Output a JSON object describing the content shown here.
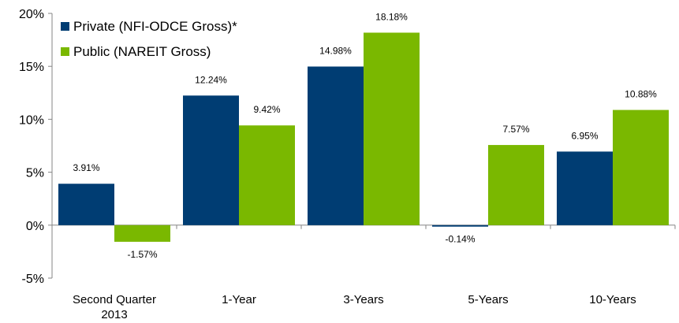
{
  "chart_data": {
    "type": "bar",
    "categories": [
      "Second Quarter 2013",
      "1-Year",
      "3-Years",
      "5-Years",
      "10-Years"
    ],
    "category_lines": [
      [
        "Second Quarter",
        "2013"
      ],
      [
        "1-Year"
      ],
      [
        "3-Years"
      ],
      [
        "5-Years"
      ],
      [
        "10-Years"
      ]
    ],
    "series": [
      {
        "name": "Private (NFI-ODCE Gross)*",
        "color": "#003d73",
        "values": [
          3.91,
          12.24,
          14.98,
          -0.14,
          6.95
        ],
        "labels": [
          "3.91%",
          "12.24%",
          "14.98%",
          "-0.14%",
          "6.95%"
        ]
      },
      {
        "name": "Public (NAREIT Gross)",
        "color": "#7ab800",
        "values": [
          -1.57,
          9.42,
          18.18,
          7.57,
          10.88
        ],
        "labels": [
          "-1.57%",
          "9.42%",
          "18.18%",
          "7.57%",
          "10.88%"
        ]
      }
    ],
    "y_ticks": [
      -5,
      0,
      5,
      10,
      15,
      20
    ],
    "y_tick_labels": [
      "-5%",
      "0%",
      "5%",
      "10%",
      "15%",
      "20%"
    ],
    "ylim": [
      -5,
      20
    ],
    "title": "",
    "xlabel": "",
    "ylabel": "",
    "legend_position": "top-left",
    "grid": false
  }
}
